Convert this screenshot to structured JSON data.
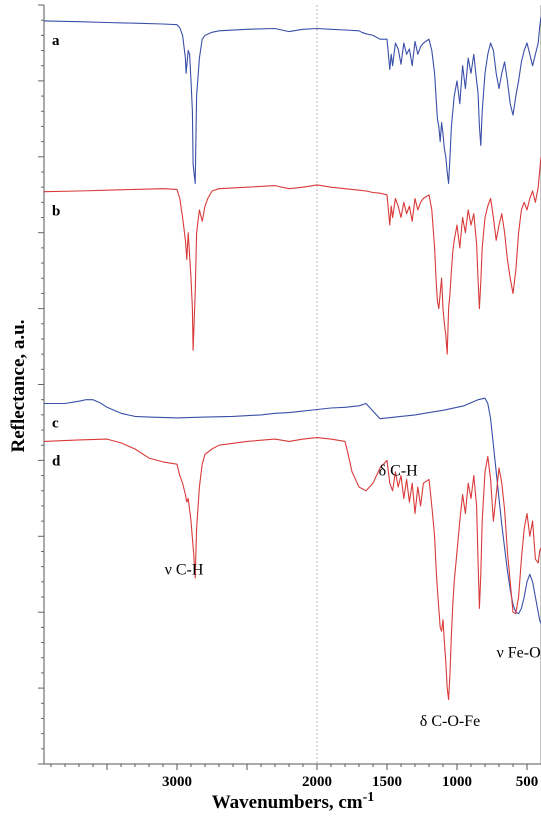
{
  "chart_data": {
    "type": "line",
    "xlabel": "Wavenumbers, cm",
    "xlabel_sup": "-1",
    "ylabel": "Reflectance, a.u.",
    "x_reversed": true,
    "xlim": [
      3950,
      400
    ],
    "ylim": [
      0,
      100
    ],
    "x_ticks": [
      3000,
      2000,
      1500,
      1000,
      500
    ],
    "gridline_x": 2000,
    "series": [
      {
        "name": "a",
        "color": "#3a4fa8",
        "x": [
          3950,
          3700,
          3500,
          3300,
          3100,
          3000,
          2980,
          2960,
          2940,
          2935,
          2920,
          2910,
          2900,
          2890,
          2885,
          2870,
          2860,
          2840,
          2820,
          2800,
          2750,
          2700,
          2500,
          2300,
          2200,
          2100,
          2000,
          1900,
          1800,
          1700,
          1680,
          1650,
          1600,
          1550,
          1500,
          1480,
          1470,
          1460,
          1440,
          1420,
          1400,
          1380,
          1360,
          1340,
          1320,
          1300,
          1280,
          1260,
          1240,
          1200,
          1180,
          1160,
          1150,
          1140,
          1130,
          1120,
          1110,
          1100,
          1090,
          1080,
          1070,
          1060,
          1050,
          1040,
          1030,
          1020,
          1000,
          980,
          960,
          940,
          920,
          900,
          880,
          860,
          850,
          840,
          830,
          820,
          800,
          780,
          760,
          740,
          720,
          700,
          680,
          660,
          640,
          620,
          600,
          580,
          560,
          540,
          520,
          500,
          480,
          460,
          440,
          420,
          410,
          400
        ],
        "y": [
          97.9,
          97.8,
          97.7,
          97.6,
          97.5,
          97.4,
          97.0,
          96.0,
          93.0,
          91.0,
          94.0,
          93.5,
          90.0,
          86.0,
          79.0,
          76.5,
          88.0,
          93.0,
          95.5,
          96.0,
          96.4,
          96.6,
          96.8,
          96.9,
          96.5,
          96.8,
          96.9,
          96.8,
          96.7,
          96.6,
          96.4,
          96.2,
          96.0,
          95.5,
          95.5,
          91.5,
          93.5,
          92.0,
          95.0,
          94.2,
          92.2,
          95.0,
          93.5,
          94.2,
          92.0,
          95.2,
          93.5,
          94.5,
          95.0,
          95.5,
          94.0,
          91.0,
          88.0,
          85.0,
          84.0,
          82.0,
          84.5,
          83.0,
          81.0,
          80.0,
          78.0,
          76.5,
          80.0,
          84.0,
          86.0,
          88.0,
          90.0,
          87.0,
          92.0,
          89.0,
          93.0,
          91.0,
          93.5,
          90.0,
          88.5,
          84.0,
          81.5,
          86.0,
          91.0,
          93.5,
          95.0,
          94.0,
          91.0,
          89.0,
          91.0,
          92.5,
          90.0,
          87.0,
          85.5,
          88.0,
          90.0,
          92.5,
          94.0,
          95.0,
          93.5,
          92.0,
          93.5,
          95.0,
          97.0,
          98.5
        ]
      },
      {
        "name": "b",
        "color": "#d93a3a",
        "x": [
          3950,
          3700,
          3500,
          3300,
          3100,
          3000,
          2980,
          2960,
          2940,
          2930,
          2920,
          2900,
          2890,
          2885,
          2870,
          2860,
          2840,
          2820,
          2800,
          2780,
          2750,
          2700,
          2500,
          2300,
          2200,
          2100,
          2000,
          1900,
          1800,
          1700,
          1650,
          1600,
          1550,
          1500,
          1480,
          1470,
          1460,
          1440,
          1420,
          1400,
          1380,
          1360,
          1340,
          1320,
          1300,
          1280,
          1260,
          1240,
          1200,
          1180,
          1160,
          1150,
          1140,
          1130,
          1120,
          1110,
          1100,
          1090,
          1080,
          1070,
          1060,
          1050,
          1040,
          1030,
          1020,
          1000,
          980,
          960,
          940,
          920,
          900,
          880,
          860,
          850,
          840,
          830,
          820,
          800,
          780,
          760,
          740,
          720,
          700,
          680,
          660,
          640,
          620,
          600,
          580,
          560,
          540,
          520,
          500,
          480,
          460,
          440,
          420,
          410,
          400
        ],
        "y": [
          75.4,
          75.5,
          75.6,
          75.7,
          75.8,
          75.7,
          74.5,
          72.0,
          69.0,
          66.5,
          70.0,
          64.0,
          60.0,
          54.5,
          62.0,
          70.0,
          73.0,
          71.5,
          73.5,
          74.5,
          75.5,
          75.8,
          76.0,
          76.2,
          75.8,
          76.0,
          76.3,
          76.0,
          75.8,
          75.6,
          75.5,
          75.3,
          75.2,
          75.0,
          71.0,
          73.5,
          72.0,
          74.5,
          73.5,
          72.0,
          74.0,
          72.5,
          73.5,
          71.5,
          74.5,
          73.0,
          74.0,
          74.5,
          75.0,
          73.0,
          68.0,
          64.0,
          61.0,
          60.0,
          62.0,
          64.0,
          60.0,
          58.0,
          56.5,
          54.0,
          60.0,
          62.0,
          65.0,
          67.5,
          69.0,
          71.0,
          68.0,
          72.0,
          70.0,
          73.0,
          71.0,
          72.5,
          68.5,
          64.0,
          60.0,
          63.5,
          68.0,
          72.0,
          73.5,
          74.5,
          72.0,
          69.0,
          71.0,
          72.5,
          70.0,
          66.5,
          64.0,
          62.0,
          65.0,
          70.0,
          73.0,
          74.0,
          73.0,
          74.5,
          75.5,
          74.0,
          76.0,
          78.0,
          80.0
        ]
      },
      {
        "name": "c",
        "color": "#3a4fa8",
        "x": [
          3950,
          3800,
          3700,
          3650,
          3600,
          3550,
          3500,
          3400,
          3300,
          3200,
          3000,
          2800,
          2600,
          2400,
          2300,
          2200,
          2100,
          2000,
          1900,
          1800,
          1700,
          1650,
          1600,
          1550,
          1500,
          1400,
          1300,
          1200,
          1100,
          1000,
          950,
          900,
          850,
          800,
          780,
          760,
          740,
          720,
          700,
          680,
          660,
          640,
          620,
          600,
          580,
          560,
          540,
          520,
          500,
          480,
          460,
          440,
          420,
          410,
          400
        ],
        "y": [
          47.5,
          47.5,
          47.8,
          48.0,
          48.0,
          47.6,
          47.0,
          46.2,
          45.8,
          45.7,
          45.6,
          45.7,
          45.8,
          46.0,
          46.2,
          46.3,
          46.5,
          46.7,
          46.9,
          47.0,
          47.2,
          47.5,
          46.5,
          45.5,
          45.6,
          45.8,
          46.0,
          46.3,
          46.6,
          47.0,
          47.2,
          47.6,
          48.0,
          48.2,
          47.5,
          45.5,
          42.0,
          38.5,
          35.0,
          31.5,
          28.5,
          25.5,
          23.0,
          21.0,
          20.0,
          19.8,
          20.5,
          22.0,
          24.0,
          25.0,
          24.0,
          22.0,
          20.0,
          19.0,
          18.5
        ]
      },
      {
        "name": "d",
        "color": "#d93a3a",
        "x": [
          3950,
          3700,
          3500,
          3400,
          3300,
          3200,
          3100,
          3000,
          2980,
          2960,
          2940,
          2930,
          2920,
          2900,
          2880,
          2870,
          2860,
          2840,
          2820,
          2800,
          2750,
          2700,
          2500,
          2300,
          2200,
          2100,
          2000,
          1900,
          1800,
          1780,
          1750,
          1700,
          1650,
          1600,
          1550,
          1500,
          1480,
          1460,
          1440,
          1420,
          1400,
          1380,
          1360,
          1340,
          1320,
          1300,
          1280,
          1260,
          1240,
          1200,
          1180,
          1160,
          1150,
          1140,
          1130,
          1120,
          1110,
          1100,
          1090,
          1080,
          1070,
          1060,
          1050,
          1040,
          1030,
          1020,
          1000,
          980,
          960,
          940,
          920,
          900,
          880,
          860,
          850,
          840,
          830,
          820,
          800,
          780,
          760,
          740,
          720,
          700,
          680,
          660,
          640,
          620,
          600,
          580,
          560,
          540,
          520,
          500,
          480,
          460,
          440,
          420,
          410,
          400
        ],
        "y": [
          42.5,
          42.7,
          42.8,
          42.3,
          41.5,
          40.3,
          39.8,
          39.5,
          38.0,
          37.0,
          35.5,
          34.5,
          35.0,
          32.0,
          27.5,
          24.5,
          31.0,
          36.5,
          39.5,
          40.8,
          41.5,
          42.0,
          42.5,
          42.8,
          42.5,
          42.8,
          43.0,
          42.8,
          42.5,
          41.0,
          38.5,
          36.5,
          36.0,
          37.0,
          39.0,
          40.0,
          37.0,
          36.0,
          38.5,
          36.5,
          38.0,
          35.0,
          37.5,
          34.5,
          37.0,
          33.0,
          36.5,
          34.0,
          37.0,
          37.5,
          34.0,
          30.0,
          26.0,
          23.0,
          20.5,
          18.0,
          17.5,
          19.0,
          16.0,
          13.5,
          10.0,
          8.5,
          12.0,
          17.0,
          21.0,
          24.0,
          28.0,
          32.0,
          35.5,
          33.0,
          37.0,
          35.0,
          38.0,
          34.0,
          27.0,
          20.5,
          25.0,
          32.0,
          38.5,
          40.5,
          37.5,
          32.0,
          35.5,
          39.0,
          37.0,
          33.5,
          28.0,
          24.0,
          20.0,
          19.8,
          22.0,
          27.0,
          31.0,
          33.0,
          30.0,
          32.0,
          27.0,
          26.5,
          28.0,
          28.5
        ]
      }
    ],
    "annotations": [
      {
        "text": "ν C-H",
        "x": 2950,
        "y": 25
      },
      {
        "text": "δ C-H",
        "x": 1420,
        "y": 38
      },
      {
        "text": "δ C-O-Fe",
        "x": 1050,
        "y": 5
      },
      {
        "text": "ν Fe-O",
        "x": 560,
        "y": 14
      }
    ]
  }
}
